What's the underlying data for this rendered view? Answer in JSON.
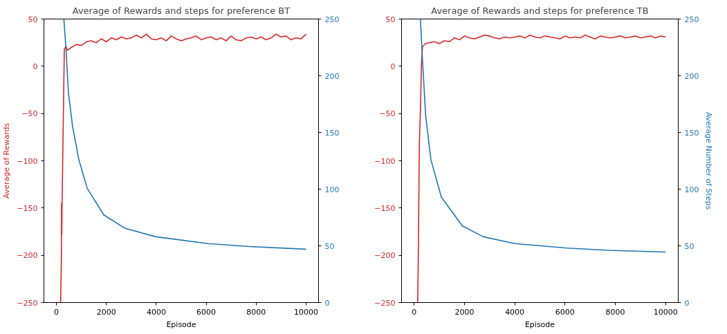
{
  "chart_data": [
    {
      "type": "line",
      "title": "Average of Rewards and steps for preference BT",
      "xlabel": "Episode",
      "ylabel": "Average of Rewards",
      "xlim": [
        -500,
        10500
      ],
      "xticks": [
        0,
        2000,
        4000,
        6000,
        8000,
        10000
      ],
      "ylim": [
        -250,
        50
      ],
      "yticks": [
        -250,
        -200,
        -150,
        -100,
        -50,
        0,
        50
      ],
      "y2lim": [
        0,
        250
      ],
      "y2ticks": [
        0,
        50,
        100,
        150,
        200,
        250
      ],
      "grid": false,
      "series": [
        {
          "color": "#d62728",
          "x": [
            170,
            200,
            208,
            215,
            225,
            317,
            383,
            442,
            600,
            800,
            1000,
            1200,
            1400,
            1600,
            1800,
            2000,
            2200,
            2400,
            2600,
            2800,
            3000,
            3200,
            3400,
            3600,
            3800,
            4000,
            4200,
            4400,
            4600,
            4800,
            5000,
            5200,
            5400,
            5600,
            5800,
            6000,
            6200,
            6400,
            6600,
            6800,
            7000,
            7200,
            7400,
            7600,
            7800,
            8000,
            8200,
            8400,
            8600,
            8800,
            9000,
            9200,
            9400,
            9600,
            9800,
            10000
          ],
          "values": [
            -250,
            -200,
            -145,
            -178,
            -150,
            18,
            21,
            17,
            20,
            23,
            22,
            26,
            27,
            25,
            29,
            26,
            30,
            28,
            31,
            29,
            30,
            33,
            30,
            34,
            29,
            28,
            30,
            27,
            32,
            29,
            27,
            29,
            30,
            32,
            28,
            30,
            31,
            28,
            30,
            27,
            32,
            28,
            27,
            30,
            31,
            29,
            31,
            28,
            30,
            34,
            31,
            32,
            28,
            30,
            29,
            34
          ]
        },
        {
          "color": "#1f77b4",
          "axis": "y2",
          "x": [
            300,
            383,
            483,
            650,
            900,
            1233,
            1900,
            2733,
            3983,
            6067,
            7733,
            10000
          ],
          "values": [
            250,
            223.6,
            184.6,
            155,
            126,
            100.7,
            77.3,
            65.6,
            58,
            52,
            49.4,
            47
          ]
        }
      ]
    },
    {
      "type": "line",
      "title": "Average of Rewards and steps for preference TB",
      "xlabel": "Episode",
      "y2label": "Average Number of Steps",
      "xlim": [
        -500,
        10500
      ],
      "xticks": [
        0,
        2000,
        4000,
        6000,
        8000,
        10000
      ],
      "ylim": [
        -250,
        50
      ],
      "yticks": [
        -250,
        -200,
        -150,
        -100,
        -50,
        0,
        50
      ],
      "y2lim": [
        0,
        250
      ],
      "y2ticks": [
        0,
        50,
        100,
        150,
        200,
        250
      ],
      "grid": false,
      "series": [
        {
          "color": "#d62728",
          "x": [
            142,
            167,
            208,
            250,
            292,
            333,
            458,
            600,
            800,
            1000,
            1200,
            1400,
            1600,
            1800,
            2000,
            2200,
            2400,
            2600,
            2800,
            3000,
            3200,
            3400,
            3600,
            3800,
            4000,
            4200,
            4400,
            4600,
            4800,
            5000,
            5200,
            5400,
            5600,
            5800,
            6000,
            6200,
            6400,
            6600,
            6800,
            7000,
            7200,
            7400,
            7600,
            7800,
            8000,
            8200,
            8400,
            8600,
            8800,
            9000,
            9200,
            9400,
            9600,
            9800,
            10000
          ],
          "values": [
            -250,
            -200,
            -82,
            -47,
            2,
            20.7,
            24,
            25,
            26,
            24,
            27,
            26,
            30,
            28,
            32,
            30,
            29,
            31,
            33,
            32,
            30,
            29,
            31,
            30,
            31,
            32,
            30,
            33,
            31,
            30,
            32,
            31,
            30,
            29,
            32,
            30,
            31,
            30,
            33,
            31,
            29,
            32,
            31,
            30,
            31,
            32,
            30,
            31,
            32,
            30,
            31,
            32,
            30,
            32,
            31
          ]
        },
        {
          "color": "#1f77b4",
          "axis": "y2",
          "x": [
            250,
            333,
            458,
            667,
            1083,
            1917,
            2750,
            4000,
            6083,
            7750,
            10000
          ],
          "values": [
            250,
            213.9,
            165,
            126,
            93,
            67.5,
            58,
            52,
            48,
            46,
            44.5
          ]
        }
      ]
    }
  ]
}
